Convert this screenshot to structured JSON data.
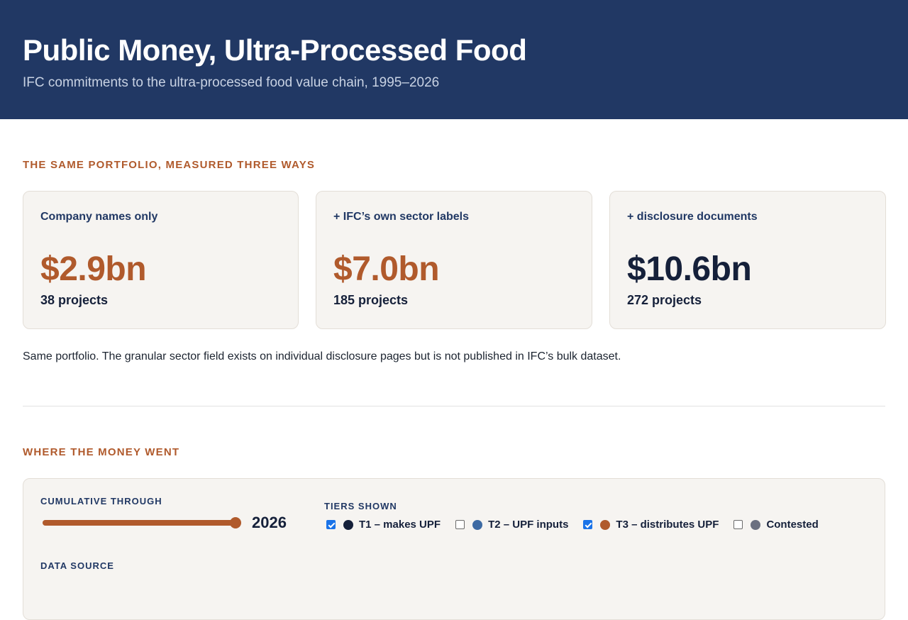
{
  "header": {
    "title": "Public Money, Ultra-Processed Food",
    "subtitle": "IFC commitments to the ultra-processed food value chain, 1995–2026"
  },
  "measures": {
    "section_title": "THE SAME PORTFOLIO, MEASURED THREE WAYS",
    "cards": [
      {
        "label": "Company names only",
        "amount": "$2.9bn",
        "projects": "38 projects"
      },
      {
        "label": "+ IFC’s own sector labels",
        "amount": "$7.0bn",
        "projects": "185 projects"
      },
      {
        "label": "+ disclosure documents",
        "amount": "$10.6bn",
        "projects": "272 projects"
      }
    ],
    "note": "Same portfolio. The granular sector field exists on individual disclosure pages but is not published in IFC’s bulk dataset."
  },
  "where": {
    "section_title": "WHERE THE MONEY WENT",
    "cumulative_label": "CUMULATIVE THROUGH",
    "year_min": 1995,
    "year_max": 2026,
    "year_value": "2026",
    "tiers_label": "TIERS SHOWN",
    "tiers": [
      {
        "label": "T1 – makes UPF",
        "checked": true,
        "color": "#15203a"
      },
      {
        "label": "T2 – UPF inputs",
        "checked": false,
        "color": "#3d6aa3"
      },
      {
        "label": "T3 – distributes UPF",
        "checked": true,
        "color": "#b05a2c"
      },
      {
        "label": "Contested",
        "checked": false,
        "color": "#6b7080"
      }
    ],
    "data_source_label": "DATA SOURCE"
  },
  "colors": {
    "header_bg": "#213864",
    "accent": "#b05a2c",
    "card_bg": "#f6f4f1"
  }
}
